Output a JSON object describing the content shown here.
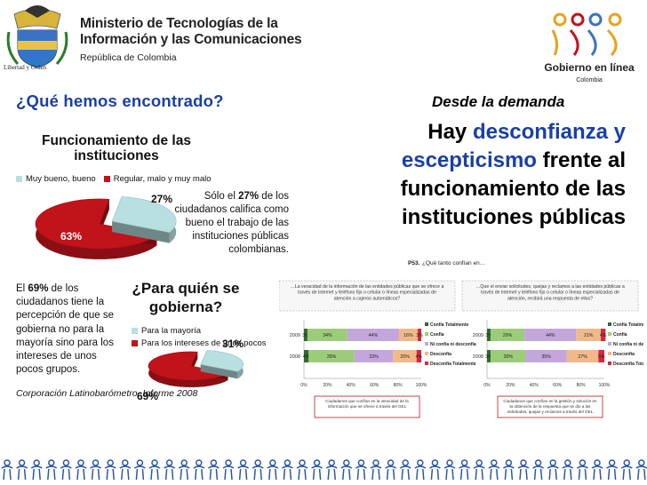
{
  "header": {
    "ministry_line1": "Ministerio de Tecnologías de la",
    "ministry_line2": "Información y las Comunicaciones",
    "republic": "República de Colombia",
    "crest_caption": "Libertad y Orden",
    "gel_logo_text": "Gobierno en línea",
    "gel_logo_sub": "Colombia"
  },
  "left": {
    "question_title": "¿Qué hemos encontrado?"
  },
  "right": {
    "demand_label": "Desde la demanda",
    "statement_part1": "Hay ",
    "statement_highlight": "desconfianza y escepticismo",
    "statement_part2": " frente al funcionamiento de las instituciones públicas"
  },
  "chart1": {
    "title_line1": "Funcionamiento  de las",
    "title_line2": "instituciones",
    "legend": [
      "Muy bueno, bueno",
      "Regular, malo y muy malo"
    ],
    "note_pre": "Sólo el ",
    "note_bold": "27%",
    "note_post": " de los ciudadanos califica como bueno el trabajo de las instituciones públicas colombianas."
  },
  "chart2": {
    "left_pre": "El ",
    "left_bold": "69%",
    "left_post": " de los ciudadanos tiene la percepción de que se gobierna no para la mayoría sino para los intereses de unos pocos grupos.",
    "title_line1": "¿Para quién se",
    "title_line2": "gobierna?",
    "legend": [
      "Para la mayoría",
      "Para los intereses de unos pocos"
    ]
  },
  "source": "Corporación Latinobarómetro. Informe 2008",
  "survey": {
    "title_code": "P53.",
    "title_text": "¿Qué tanto confían en…",
    "left_question": "…La veracidad de la información de las entidades públicas que se ofrece a través  de Internet y teléfono fijo o celular o líneas especializadas de atención a  cajeros automáticos?",
    "right_question": "…Que el enviar solicitudes, quejas y reclamos a las entidades públicas a través de Internet y teléfono fijo o celular o líneas especializadas de atención, recibirá una respuesta de ellos?",
    "years": [
      "2009",
      "2008"
    ],
    "legend": [
      "Confía Totalmente",
      "Confía",
      "Ni confía ni desconfía",
      "Desconfía",
      "Desconfía Totalmente"
    ],
    "axis_ticks": [
      "0%",
      "20%",
      "40%",
      "60%",
      "80%",
      "100%"
    ],
    "left_caption": "Ciudadanos que confían en la veracidad de la información que se ofrece a través del GEL",
    "right_caption": "Ciudadanos que confían en la gestión y solución en la obtención de la respuesta que se dio a las solicitudes, quejas y reclamos a través del GEL"
  },
  "chart_data": [
    {
      "type": "pie",
      "title": "Funcionamiento  de las instituciones",
      "categories": [
        "Muy bueno, bueno",
        "Regular, malo y muy malo"
      ],
      "values": [
        27,
        63
      ],
      "labels": [
        "27%",
        "63%"
      ],
      "colors": [
        "#b9e0e0",
        "#c0131a"
      ],
      "legend": "top"
    },
    {
      "type": "pie",
      "title": "¿Para quién se gobierna?",
      "categories": [
        "Para la mayoría",
        "Para los intereses de unos pocos"
      ],
      "values": [
        31,
        69
      ],
      "labels": [
        "31%",
        "69%"
      ],
      "colors": [
        "#b9e0e0",
        "#c0131a"
      ],
      "legend": "top"
    },
    {
      "type": "bar",
      "title": "¿Qué tanto confían en…",
      "categories": [
        "2009",
        "2008"
      ],
      "series": [
        {
          "name": "Confía Totalmente",
          "values": [
            3,
            4
          ]
        },
        {
          "name": "Confía",
          "values": [
            34,
            39
          ]
        },
        {
          "name": "Ni confía ni desconfía",
          "values": [
            44,
            33
          ]
        },
        {
          "name": "Desconfía",
          "values": [
            16,
            20
          ]
        },
        {
          "name": "Desconfía Totalmente",
          "values": [
            3,
            4
          ]
        }
      ],
      "value_labels": [
        [
          "3%",
          "34%",
          "44%",
          "16%",
          "3%"
        ],
        [
          "4%",
          "39%",
          "33%",
          "20%",
          "4%"
        ]
      ],
      "colors": [
        "#2e6b2e",
        "#9ccc7a",
        "#c3a7dc",
        "#f1b98a",
        "#d9263c"
      ],
      "xlim": [
        0,
        100
      ],
      "legend": "right"
    },
    {
      "type": "bar",
      "title": "¿Qué tanto confían en…",
      "categories": [
        "2009",
        "2008"
      ],
      "series": [
        {
          "name": "Confía Totalmente",
          "values": [
            3,
            3
          ]
        },
        {
          "name": "Confía",
          "values": [
            29,
            30
          ]
        },
        {
          "name": "Ni confía ni desconfía",
          "values": [
            44,
            35
          ]
        },
        {
          "name": "Desconfía",
          "values": [
            21,
            27
          ]
        },
        {
          "name": "Desconfía Totalmente",
          "values": [
            4,
            5
          ]
        }
      ],
      "value_labels": [
        [
          "3%",
          "29%",
          "44%",
          "21%",
          "4%"
        ],
        [
          "3%",
          "30%",
          "35%",
          "27%",
          "5%"
        ]
      ],
      "colors": [
        "#2e6b2e",
        "#9ccc7a",
        "#c3a7dc",
        "#f1b98a",
        "#d9263c"
      ],
      "xlim": [
        0,
        100
      ],
      "legend": "right"
    }
  ],
  "colors": {
    "accent_blue": "#1a3fa6",
    "red": "#c0131a",
    "teal": "#b9e0e0",
    "footer_blue": "#2a57a6"
  }
}
